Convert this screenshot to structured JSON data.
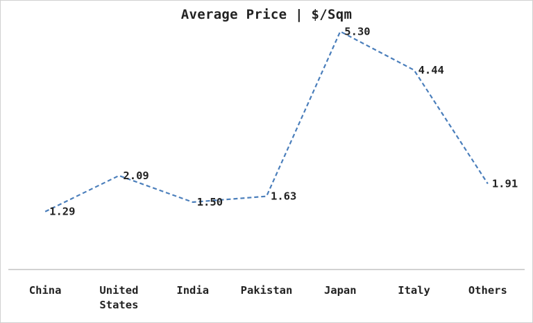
{
  "chart_data": {
    "type": "line",
    "title": "Average Price | $/Sqm",
    "categories": [
      "China",
      "United States",
      "India",
      "Pakistan",
      "Japan",
      "Italy",
      "Others"
    ],
    "category_lines": [
      [
        "China"
      ],
      [
        "United",
        "States"
      ],
      [
        "India"
      ],
      [
        "Pakistan"
      ],
      [
        "Japan"
      ],
      [
        "Italy"
      ],
      [
        "Others"
      ]
    ],
    "series": [
      {
        "values": [
          1.29,
          2.09,
          1.5,
          1.63,
          5.3,
          4.44,
          1.91
        ],
        "labels": [
          "1.29",
          "2.09",
          "1.50",
          "1.63",
          "5.30",
          "4.44",
          "1.91"
        ],
        "color": "#4a7ebb",
        "line_style": "dashed"
      }
    ],
    "ylim": [
      0,
      6
    ],
    "grid": false,
    "legend": "none",
    "xlabel": "",
    "ylabel": ""
  }
}
